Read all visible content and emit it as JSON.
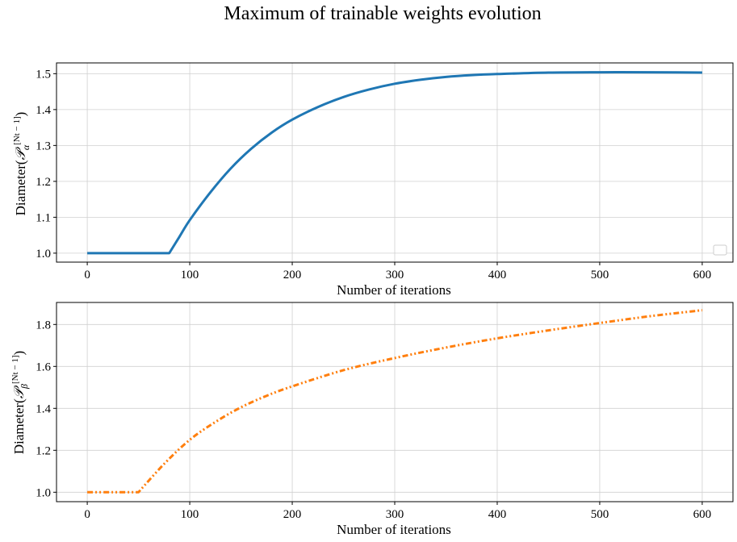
{
  "figure": {
    "title": "Maximum of trainable weights evolution"
  },
  "chart_data": [
    {
      "type": "line",
      "xlabel": "Number of iterations",
      "ylabel": "Diameter(𝒫α[Nt − 1])",
      "xlim": [
        -30,
        630
      ],
      "ylim": [
        0.975,
        1.53
      ],
      "xticks": [
        0,
        100,
        200,
        300,
        400,
        500,
        600
      ],
      "yticks": [
        1.0,
        1.1,
        1.2,
        1.3,
        1.4,
        1.5
      ],
      "ytick_labels": [
        "1.0",
        "1.1",
        "1.2",
        "1.3",
        "1.4",
        "1.5"
      ],
      "grid": true,
      "legend": "bottom-right (empty)",
      "series": [
        {
          "color": "#1f77b4",
          "style": "solid",
          "x": [
            0,
            40,
            80,
            90,
            100,
            120,
            140,
            160,
            180,
            200,
            225,
            250,
            275,
            300,
            325,
            350,
            375,
            400,
            450,
            500,
            550,
            600
          ],
          "y": [
            1.0,
            1.0,
            1.0,
            1.046,
            1.092,
            1.169,
            1.236,
            1.291,
            1.336,
            1.372,
            1.407,
            1.435,
            1.456,
            1.472,
            1.483,
            1.491,
            1.496,
            1.499,
            1.503,
            1.504,
            1.504,
            1.503
          ]
        }
      ]
    },
    {
      "type": "line",
      "xlabel": "Number of iterations",
      "ylabel": "Diameter(𝒫β[Nt − 1])",
      "xlim": [
        -30,
        630
      ],
      "ylim": [
        0.955,
        1.905
      ],
      "xticks": [
        0,
        100,
        200,
        300,
        400,
        500,
        600
      ],
      "yticks": [
        1.0,
        1.2,
        1.4,
        1.6,
        1.8
      ],
      "ytick_labels": [
        "1.0",
        "1.2",
        "1.4",
        "1.6",
        "1.8"
      ],
      "grid": true,
      "series": [
        {
          "color": "#ff7f0e",
          "style": "dashdotdot",
          "x": [
            0,
            25,
            50,
            75,
            100,
            125,
            150,
            175,
            200,
            250,
            300,
            350,
            400,
            450,
            500,
            550,
            600
          ],
          "y": [
            1.0,
            1.0,
            1.0,
            1.135,
            1.25,
            1.335,
            1.405,
            1.46,
            1.505,
            1.582,
            1.64,
            1.69,
            1.734,
            1.772,
            1.807,
            1.84,
            1.868
          ]
        }
      ]
    }
  ]
}
